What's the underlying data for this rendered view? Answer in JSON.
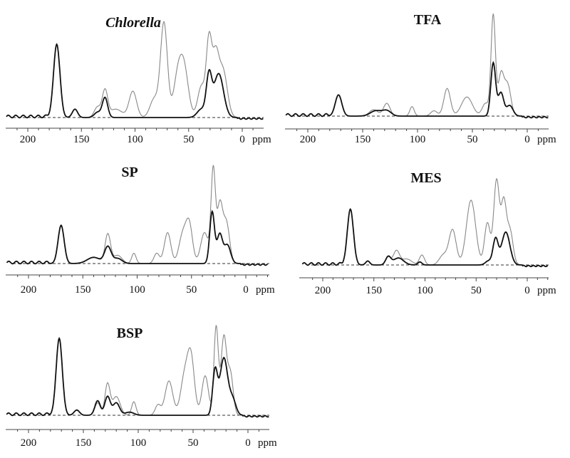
{
  "chart_data": [
    {
      "type": "line",
      "title": "Chlorella",
      "title_italic": true,
      "xlabel": "ppm",
      "xlim": [
        220,
        -20
      ],
      "x_ticks": [
        200,
        150,
        100,
        50,
        0
      ],
      "ylim": [
        0,
        1
      ],
      "baseline": "dashed",
      "grid": false,
      "series": [
        {
          "color": "#111111",
          "peaks": [
            [
              173,
              0.7,
              3
            ],
            [
              156,
              0.08,
              2.5
            ],
            [
              135,
              0.05,
              3
            ],
            [
              128,
              0.19,
              2.5
            ],
            [
              38,
              0.08,
              4
            ],
            [
              31,
              0.38,
              2.5
            ],
            [
              22,
              0.42,
              4.5
            ]
          ]
        },
        {
          "color": "#888888",
          "peaks": [
            [
              173,
              0.7,
              3
            ],
            [
              156,
              0.08,
              2.5
            ],
            [
              135,
              0.1,
              3
            ],
            [
              128,
              0.25,
              2.5
            ],
            [
              118,
              0.08,
              6
            ],
            [
              102,
              0.25,
              3.5
            ],
            [
              82,
              0.18,
              4
            ],
            [
              73,
              0.9,
              3.2
            ],
            [
              60,
              0.38,
              4
            ],
            [
              54,
              0.42,
              4
            ],
            [
              38,
              0.3,
              3.5
            ],
            [
              31,
              0.7,
              2.5
            ],
            [
              25,
              0.55,
              3
            ],
            [
              18,
              0.45,
              4
            ]
          ]
        }
      ]
    },
    {
      "type": "line",
      "title": "TFA",
      "xlabel": "ppm",
      "xlim": [
        220,
        -20
      ],
      "x_ticks": [
        200,
        150,
        100,
        50,
        0
      ],
      "ylim": [
        0,
        1
      ],
      "baseline": "dashed",
      "grid": false,
      "series": [
        {
          "color": "#111111",
          "peaks": [
            [
              172,
              0.2,
              3
            ],
            [
              138,
              0.05,
              5
            ],
            [
              128,
              0.05,
              4
            ],
            [
              31,
              0.5,
              2.2
            ],
            [
              24,
              0.22,
              2.5
            ],
            [
              16,
              0.1,
              3
            ]
          ]
        },
        {
          "color": "#888888",
          "peaks": [
            [
              172,
              0.2,
              3
            ],
            [
              140,
              0.06,
              4
            ],
            [
              128,
              0.12,
              3
            ],
            [
              105,
              0.09,
              2
            ],
            [
              85,
              0.05,
              3
            ],
            [
              73,
              0.26,
              3
            ],
            [
              55,
              0.18,
              5
            ],
            [
              38,
              0.12,
              3
            ],
            [
              31,
              0.95,
              2
            ],
            [
              24,
              0.38,
              2.5
            ],
            [
              18,
              0.3,
              3
            ]
          ]
        }
      ]
    },
    {
      "type": "line",
      "title": "SP",
      "xlabel": "ppm",
      "xlim": [
        220,
        -20
      ],
      "x_ticks": [
        200,
        150,
        100,
        50,
        0
      ],
      "ylim": [
        0,
        1
      ],
      "baseline": "dashed",
      "grid": false,
      "series": [
        {
          "color": "#111111",
          "peaks": [
            [
              170,
              0.37,
              2.8
            ],
            [
              140,
              0.06,
              6
            ],
            [
              127,
              0.16,
              3
            ],
            [
              118,
              0.05,
              4
            ],
            [
              31,
              0.5,
              2.2
            ],
            [
              24,
              0.28,
              2.5
            ],
            [
              17,
              0.18,
              3
            ]
          ]
        },
        {
          "color": "#888888",
          "peaks": [
            [
              170,
              0.37,
              2.8
            ],
            [
              140,
              0.06,
              6
            ],
            [
              127,
              0.28,
              2.5
            ],
            [
              118,
              0.08,
              4
            ],
            [
              103,
              0.1,
              2
            ],
            [
              82,
              0.1,
              2.5
            ],
            [
              72,
              0.3,
              3
            ],
            [
              58,
              0.28,
              3.5
            ],
            [
              52,
              0.36,
              3
            ],
            [
              38,
              0.3,
              3.5
            ],
            [
              30,
              0.9,
              2
            ],
            [
              24,
              0.55,
              2.5
            ],
            [
              18,
              0.4,
              3
            ]
          ]
        }
      ]
    },
    {
      "type": "line",
      "title": "MES",
      "xlabel": "ppm",
      "xlim": [
        220,
        -20
      ],
      "x_ticks": [
        200,
        150,
        100,
        50,
        0
      ],
      "ylim": [
        0,
        1
      ],
      "baseline": "dashed",
      "grid": false,
      "series": [
        {
          "color": "#111111",
          "peaks": [
            [
              173,
              0.56,
              3
            ],
            [
              156,
              0.04,
              2
            ],
            [
              136,
              0.08,
              2.5
            ],
            [
              126,
              0.07,
              5
            ],
            [
              105,
              0.03,
              2
            ],
            [
              38,
              0.04,
              3
            ],
            [
              31,
              0.26,
              2.5
            ],
            [
              21,
              0.33,
              4
            ]
          ]
        },
        {
          "color": "#888888",
          "peaks": [
            [
              173,
              0.56,
              3
            ],
            [
              156,
              0.04,
              2
            ],
            [
              136,
              0.08,
              2.5
            ],
            [
              128,
              0.14,
              3
            ],
            [
              118,
              0.06,
              5
            ],
            [
              103,
              0.1,
              2.5
            ],
            [
              82,
              0.1,
              4
            ],
            [
              73,
              0.35,
              3.5
            ],
            [
              55,
              0.65,
              4.5
            ],
            [
              39,
              0.42,
              2.8
            ],
            [
              30,
              0.85,
              2.8
            ],
            [
              23,
              0.6,
              2.5
            ],
            [
              17,
              0.35,
              3
            ]
          ]
        }
      ]
    },
    {
      "type": "line",
      "title": "BSP",
      "xlabel": "ppm",
      "xlim": [
        220,
        -20
      ],
      "x_ticks": [
        200,
        150,
        100,
        50,
        0
      ],
      "ylim": [
        0,
        1
      ],
      "baseline": "dashed",
      "grid": false,
      "series": [
        {
          "color": "#111111",
          "peaks": [
            [
              172,
              0.74,
              2.8
            ],
            [
              156,
              0.05,
              2.5
            ],
            [
              137,
              0.14,
              2.5
            ],
            [
              128,
              0.18,
              2.5
            ],
            [
              120,
              0.12,
              3
            ],
            [
              108,
              0.03,
              4
            ],
            [
              30,
              0.42,
              2.2
            ],
            [
              22,
              0.55,
              3.5
            ],
            [
              14,
              0.15,
              3
            ]
          ]
        },
        {
          "color": "#888888",
          "peaks": [
            [
              172,
              0.74,
              2.8
            ],
            [
              156,
              0.05,
              2.5
            ],
            [
              137,
              0.12,
              2.5
            ],
            [
              128,
              0.3,
              2.3
            ],
            [
              120,
              0.18,
              3.5
            ],
            [
              104,
              0.13,
              2
            ],
            [
              82,
              0.1,
              2.5
            ],
            [
              72,
              0.33,
              3.5
            ],
            [
              58,
              0.35,
              3.5
            ],
            [
              52,
              0.55,
              3.2
            ],
            [
              39,
              0.38,
              3
            ],
            [
              29,
              0.85,
              2
            ],
            [
              22,
              0.75,
              2.5
            ],
            [
              16,
              0.4,
              2.5
            ]
          ]
        }
      ]
    }
  ]
}
